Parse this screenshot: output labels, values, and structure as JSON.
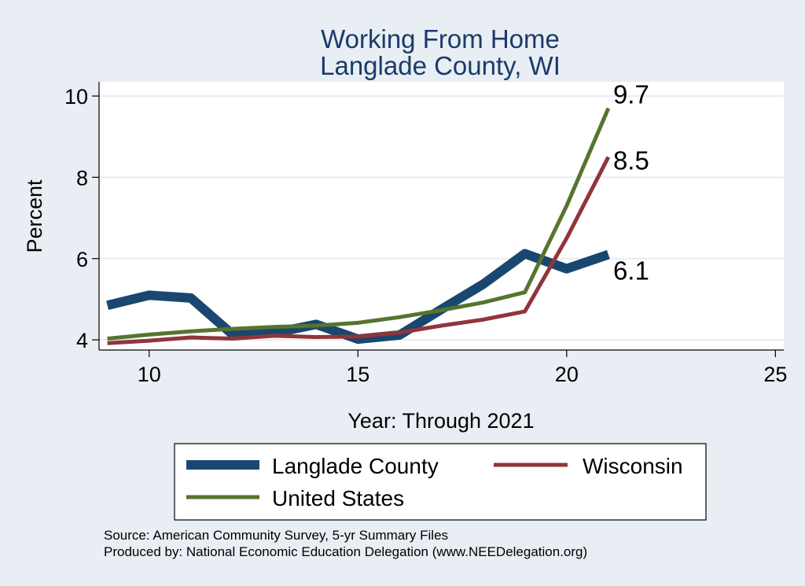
{
  "chart_data": {
    "type": "line",
    "title": [
      "Working From Home",
      "Langlade County, WI"
    ],
    "xlabel": "Year: Through 2021",
    "ylabel": "Percent",
    "xlim": [
      8.8,
      25.2
    ],
    "ylim": [
      3.75,
      10.35
    ],
    "xticks": [
      10,
      15,
      20,
      25
    ],
    "yticks": [
      4,
      6,
      8,
      10
    ],
    "grid": true,
    "x": [
      9,
      10,
      11,
      12,
      13,
      14,
      15,
      16,
      17,
      18,
      19,
      20,
      21
    ],
    "series": [
      {
        "name": "Langlade County",
        "color": "#1a476f",
        "values": [
          4.85,
          5.1,
          5.03,
          4.13,
          4.17,
          4.38,
          4.02,
          4.12,
          4.75,
          5.37,
          6.12,
          5.75,
          6.1
        ],
        "end_label": "6.1"
      },
      {
        "name": "Wisconsin",
        "color": "#90353b",
        "values": [
          3.92,
          3.98,
          4.06,
          4.03,
          4.1,
          4.07,
          4.08,
          4.18,
          4.35,
          4.5,
          4.7,
          6.5,
          8.5
        ],
        "end_label": "8.5"
      },
      {
        "name": "United States",
        "color": "#55752f",
        "values": [
          4.03,
          4.13,
          4.21,
          4.27,
          4.32,
          4.35,
          4.42,
          4.56,
          4.73,
          4.92,
          5.17,
          7.3,
          9.7
        ],
        "end_label": "9.7"
      }
    ],
    "legend": "bottom"
  },
  "notes": {
    "source": "Source: American Community Survey, 5-yr Summary Files",
    "produced_by": "Produced by: National Economic Education Delegation (www.NEEDelegation.org)"
  }
}
